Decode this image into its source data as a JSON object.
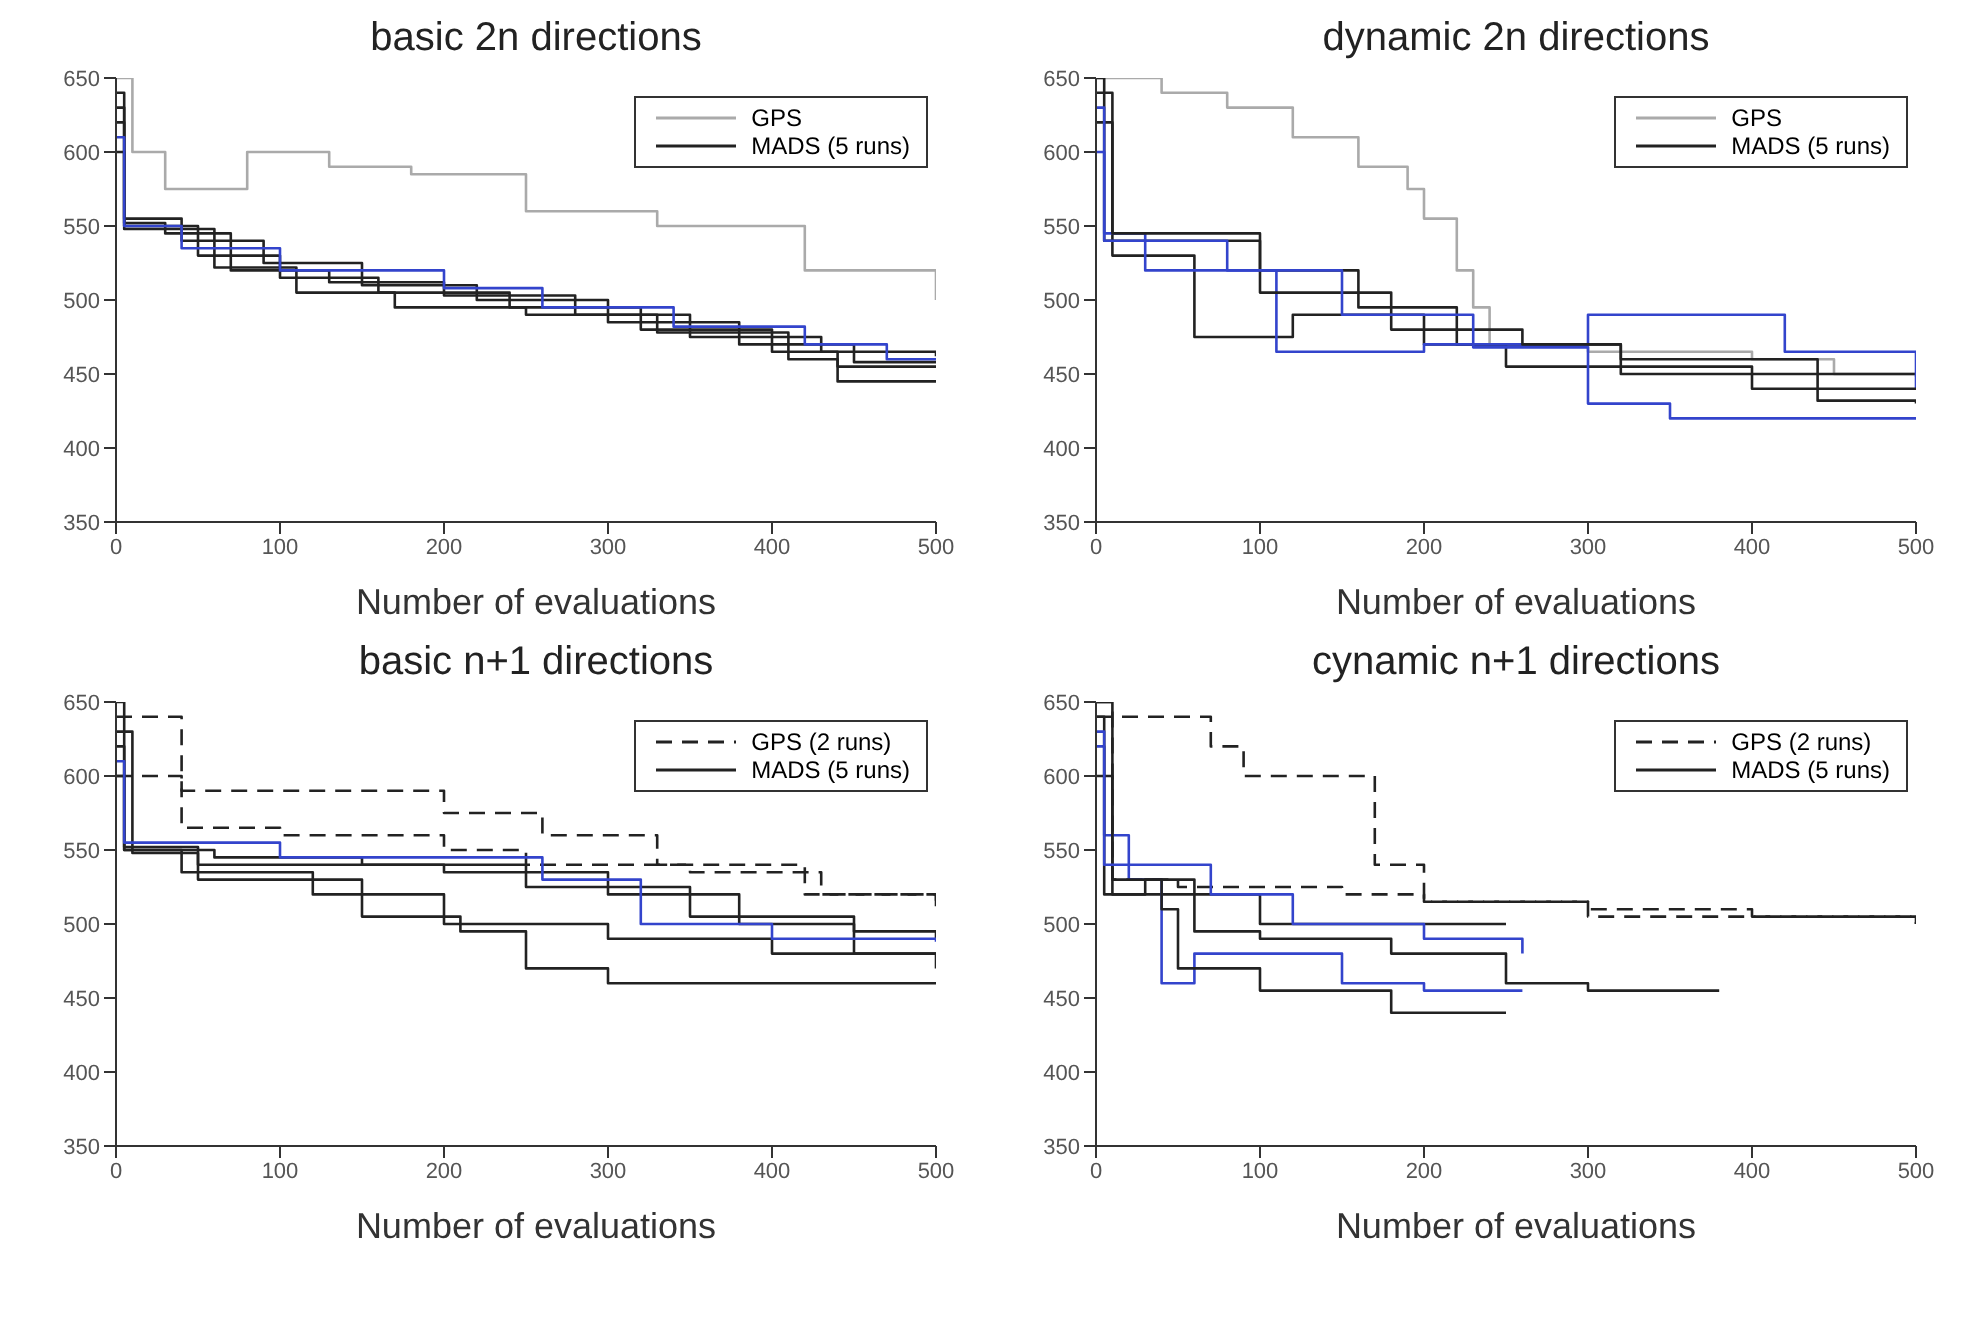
{
  "chart_data": [
    {
      "type": "step",
      "title": "basic 2n directions",
      "xlabel": "Number of evaluations",
      "xlim": [
        0,
        500
      ],
      "xticks": [
        0,
        100,
        200,
        300,
        400,
        500
      ],
      "ylim": [
        350,
        650
      ],
      "yticks": [
        350,
        400,
        450,
        500,
        550,
        600,
        650
      ],
      "legend": "top right",
      "grid": false,
      "series": [
        {
          "name": "GPS",
          "color": "#aaaaaa",
          "x": [
            0,
            10,
            30,
            80,
            130,
            180,
            250,
            330,
            420,
            500
          ],
          "values": [
            650,
            600,
            575,
            600,
            590,
            585,
            560,
            550,
            520,
            500
          ]
        },
        {
          "name": "MADS (5 runs)",
          "color": "#222222",
          "x": [
            0,
            5,
            40,
            90,
            150,
            220,
            300,
            380,
            450,
            500
          ],
          "values": [
            640,
            555,
            540,
            525,
            510,
            500,
            485,
            470,
            458,
            458
          ]
        },
        {
          "color": "#222222",
          "x": [
            0,
            5,
            50,
            100,
            160,
            240,
            320,
            400,
            440,
            500
          ],
          "values": [
            620,
            550,
            530,
            515,
            505,
            495,
            480,
            465,
            455,
            455
          ]
        },
        {
          "color": "#222222",
          "x": [
            0,
            5,
            30,
            70,
            130,
            200,
            280,
            350,
            430,
            500
          ],
          "values": [
            600,
            552,
            545,
            520,
            512,
            503,
            490,
            475,
            465,
            462
          ]
        },
        {
          "color": "#222222",
          "x": [
            0,
            5,
            60,
            110,
            170,
            250,
            330,
            410,
            440,
            500
          ],
          "values": [
            630,
            548,
            522,
            505,
            495,
            490,
            478,
            460,
            445,
            445
          ]
        },
        {
          "color": "#3344cc",
          "x": [
            0,
            5,
            40,
            100,
            200,
            260,
            340,
            420,
            470,
            500
          ],
          "values": [
            610,
            550,
            535,
            520,
            508,
            495,
            482,
            470,
            460,
            460
          ]
        }
      ]
    },
    {
      "type": "step",
      "title": "dynamic 2n directions",
      "xlabel": "Number of evaluations",
      "xlim": [
        0,
        500
      ],
      "xticks": [
        0,
        100,
        200,
        300,
        400,
        500
      ],
      "ylim": [
        350,
        650
      ],
      "yticks": [
        350,
        400,
        450,
        500,
        550,
        600,
        650
      ],
      "legend": "top right",
      "grid": false,
      "series": [
        {
          "name": "GPS",
          "color": "#aaaaaa",
          "x": [
            0,
            40,
            80,
            120,
            160,
            190,
            200,
            220,
            230,
            240,
            300,
            400,
            450,
            500
          ],
          "values": [
            650,
            640,
            630,
            610,
            590,
            575,
            555,
            520,
            495,
            470,
            465,
            460,
            450,
            448
          ]
        },
        {
          "name": "MADS (5 runs)",
          "color": "#222222",
          "x": [
            0,
            5,
            60,
            100,
            160,
            220,
            320,
            440,
            500
          ],
          "values": [
            650,
            540,
            540,
            520,
            495,
            470,
            460,
            450,
            450
          ]
        },
        {
          "color": "#222222",
          "x": [
            0,
            10,
            60,
            120,
            200,
            250,
            320,
            440,
            500
          ],
          "values": [
            620,
            530,
            475,
            490,
            470,
            455,
            450,
            432,
            430
          ]
        },
        {
          "color": "#3344cc",
          "x": [
            0,
            5,
            30,
            110,
            150,
            200,
            300,
            360,
            420,
            500
          ],
          "values": [
            600,
            545,
            520,
            465,
            465,
            470,
            490,
            490,
            465,
            440
          ]
        },
        {
          "color": "#222222",
          "x": [
            0,
            10,
            100,
            180,
            260,
            320,
            400,
            480,
            500
          ],
          "values": [
            640,
            545,
            505,
            480,
            470,
            455,
            440,
            440,
            440
          ]
        },
        {
          "color": "#3344cc",
          "x": [
            0,
            5,
            80,
            150,
            230,
            300,
            350,
            450,
            500
          ],
          "values": [
            630,
            540,
            520,
            490,
            468,
            430,
            420,
            420,
            420
          ]
        }
      ]
    },
    {
      "type": "step",
      "title": "basic n+1 directions",
      "xlabel": "Number of evaluations",
      "xlim": [
        0,
        500
      ],
      "xticks": [
        0,
        100,
        200,
        300,
        400,
        500
      ],
      "ylim": [
        350,
        650
      ],
      "yticks": [
        350,
        400,
        450,
        500,
        550,
        600,
        650
      ],
      "legend": "top right",
      "grid": false,
      "series": [
        {
          "name": "GPS (2 runs)",
          "color": "#222222",
          "line_style": "dashed",
          "x": [
            0,
            40,
            100,
            200,
            250,
            350,
            430,
            500
          ],
          "values": [
            640,
            565,
            560,
            550,
            540,
            535,
            520,
            515
          ]
        },
        {
          "color": "#222222",
          "line_style": "dashed",
          "x": [
            0,
            40,
            200,
            260,
            330,
            420,
            500
          ],
          "values": [
            600,
            590,
            575,
            560,
            540,
            520,
            512
          ]
        },
        {
          "name": "MADS (5 runs)",
          "color": "#222222",
          "x": [
            0,
            5,
            40,
            120,
            200,
            300,
            400,
            500
          ],
          "values": [
            650,
            550,
            535,
            520,
            500,
            490,
            480,
            470
          ]
        },
        {
          "color": "#222222",
          "x": [
            0,
            5,
            50,
            150,
            210,
            250,
            300,
            500
          ],
          "values": [
            620,
            552,
            530,
            505,
            495,
            470,
            460,
            460
          ]
        },
        {
          "color": "#222222",
          "x": [
            0,
            5,
            60,
            150,
            250,
            350,
            450,
            500
          ],
          "values": [
            600,
            550,
            545,
            540,
            525,
            505,
            495,
            490
          ]
        },
        {
          "color": "#222222",
          "x": [
            0,
            10,
            50,
            200,
            300,
            380,
            450,
            500
          ],
          "values": [
            630,
            548,
            540,
            535,
            520,
            500,
            480,
            480
          ]
        },
        {
          "color": "#3344cc",
          "x": [
            0,
            5,
            100,
            260,
            320,
            400,
            500
          ],
          "values": [
            610,
            555,
            545,
            530,
            500,
            490,
            488
          ]
        }
      ]
    },
    {
      "type": "step",
      "title": "cynamic n+1 directions",
      "xlabel": "Number of evaluations",
      "xlim": [
        0,
        500
      ],
      "xticks": [
        0,
        100,
        200,
        300,
        400,
        500
      ],
      "ylim": [
        350,
        650
      ],
      "yticks": [
        350,
        400,
        450,
        500,
        550,
        600,
        650
      ],
      "legend": "top right",
      "grid": false,
      "series": [
        {
          "name": "GPS (2 runs)",
          "color": "#222222",
          "line_style": "dashed",
          "x": [
            0,
            10,
            50,
            150,
            200,
            300,
            400,
            500
          ],
          "values": [
            650,
            530,
            525,
            520,
            515,
            510,
            505,
            500
          ]
        },
        {
          "color": "#222222",
          "line_style": "dashed",
          "x": [
            0,
            70,
            90,
            170,
            200,
            300,
            500
          ],
          "values": [
            640,
            620,
            600,
            540,
            515,
            505,
            500
          ]
        },
        {
          "name": "MADS (5 runs)",
          "color": "#222222",
          "x": [
            0,
            10,
            50,
            100,
            200,
            250
          ],
          "values": [
            650,
            520,
            520,
            500,
            500,
            500
          ]
        },
        {
          "color": "#3344cc",
          "x": [
            0,
            5,
            20,
            40,
            60,
            150,
            200,
            260
          ],
          "values": [
            620,
            560,
            530,
            460,
            480,
            460,
            455,
            455
          ]
        },
        {
          "color": "#222222",
          "x": [
            0,
            10,
            40,
            50,
            100,
            180,
            250
          ],
          "values": [
            600,
            530,
            510,
            470,
            455,
            440,
            440
          ]
        },
        {
          "color": "#222222",
          "x": [
            0,
            5,
            30,
            60,
            100,
            180,
            250,
            300,
            380
          ],
          "values": [
            640,
            520,
            530,
            495,
            490,
            480,
            460,
            455,
            455
          ]
        },
        {
          "color": "#3344cc",
          "x": [
            0,
            5,
            70,
            120,
            200,
            260
          ],
          "values": [
            630,
            540,
            520,
            500,
            490,
            480
          ]
        }
      ]
    }
  ]
}
